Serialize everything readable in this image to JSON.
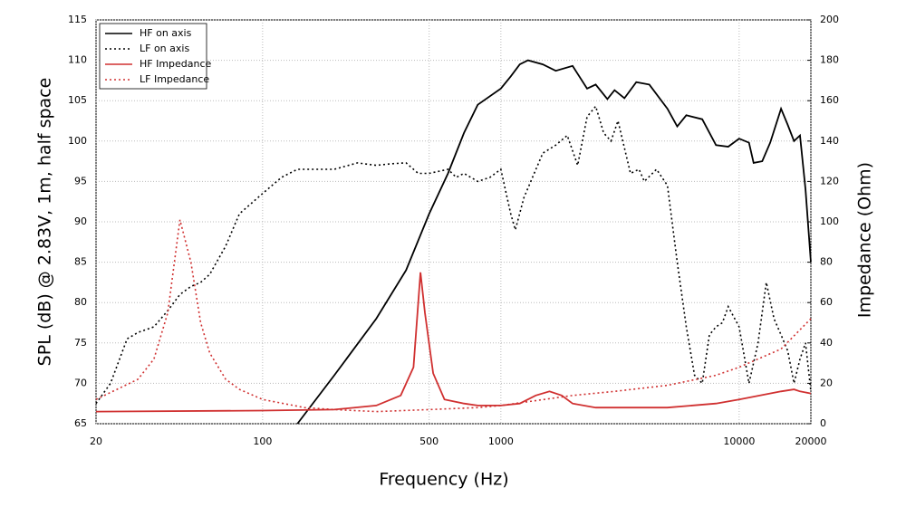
{
  "chart_data": {
    "type": "line",
    "xlabel": "Frequency (Hz)",
    "ylabel": "SPL (dB) @ 2.83V, 1m, half space",
    "y2label": "Impedance (Ohm)",
    "xscale": "log",
    "xlim": [
      20,
      20000
    ],
    "xticks": [
      20,
      100,
      500,
      1000,
      10000,
      20000
    ],
    "ylim": [
      65,
      115
    ],
    "yticks": [
      65,
      70,
      75,
      80,
      85,
      90,
      95,
      100,
      105,
      110,
      115
    ],
    "y2lim": [
      0,
      200
    ],
    "y2ticks": [
      0,
      20,
      40,
      60,
      80,
      100,
      120,
      140,
      160,
      180,
      200
    ],
    "grid": true,
    "legend": "upper left",
    "series": [
      {
        "name": "HF on axis",
        "color": "#000000",
        "dash": false,
        "x": [
          140,
          200,
          300,
          400,
          500,
          600,
          700,
          800,
          1000,
          1100,
          1200,
          1300,
          1500,
          1700,
          2000,
          2300,
          2500,
          2800,
          3000,
          3300,
          3700,
          4200,
          5000,
          5500,
          6000,
          7000,
          8000,
          9000,
          10000,
          11000,
          11500,
          12500,
          13500,
          15000,
          16000,
          17000,
          18000,
          19000,
          20000
        ],
        "values": [
          65,
          71,
          78,
          84,
          91,
          96,
          101,
          104.5,
          106.5,
          108,
          109.5,
          110,
          109.5,
          108.7,
          109.3,
          106.5,
          107,
          105.2,
          106.3,
          105.3,
          107.3,
          107,
          104,
          101.8,
          103.2,
          102.7,
          99.5,
          99.3,
          100.3,
          99.8,
          97.3,
          97.5,
          99.8,
          104,
          102,
          100,
          100.7,
          94,
          85
        ]
      },
      {
        "name": "LF on axis",
        "color": "#000000",
        "dash": true,
        "x": [
          20,
          23,
          27,
          30,
          35,
          40,
          45,
          50,
          55,
          60,
          70,
          80,
          100,
          120,
          140,
          200,
          250,
          300,
          350,
          400,
          450,
          500,
          600,
          650,
          700,
          800,
          900,
          1000,
          1100,
          1150,
          1250,
          1500,
          1700,
          1900,
          2100,
          2300,
          2500,
          2700,
          2900,
          3100,
          3500,
          3800,
          4000,
          4500,
          5000,
          5500,
          6000,
          6500,
          7000,
          7500,
          8000,
          8500,
          9000,
          10000,
          11000,
          12000,
          13000,
          14000,
          15000,
          16000,
          17000,
          18000,
          19000,
          20000
        ],
        "values": [
          67.5,
          70,
          75.5,
          76.3,
          77,
          79,
          81,
          82,
          82.5,
          83.5,
          87,
          91,
          93.5,
          95.5,
          96.5,
          96.5,
          97.3,
          97,
          97.2,
          97.3,
          96,
          96,
          96.5,
          95.5,
          96,
          95,
          95.5,
          96.5,
          91,
          89,
          93,
          98.5,
          99.5,
          100.7,
          97,
          103,
          104.3,
          101,
          100,
          102.5,
          96,
          96.5,
          95,
          96.5,
          94.5,
          85,
          77,
          71,
          70,
          76,
          77,
          77.5,
          79.5,
          77,
          70,
          75,
          82.5,
          78,
          76,
          74,
          70,
          73,
          75,
          69
        ]
      },
      {
        "name": "HF Impedance",
        "color": "#d03030",
        "dash": false,
        "axis": "y2",
        "x": [
          20,
          100,
          200,
          300,
          380,
          430,
          460,
          480,
          520,
          580,
          700,
          800,
          1000,
          1200,
          1400,
          1600,
          1800,
          2000,
          2500,
          5000,
          8000,
          10000,
          15000,
          17000,
          18000,
          20000
        ],
        "values": [
          6,
          6.5,
          7,
          9,
          14,
          28,
          75,
          55,
          25,
          12,
          10,
          9,
          9,
          10,
          14,
          16,
          14,
          10,
          8,
          8,
          10,
          12,
          16,
          17,
          16,
          15
        ]
      },
      {
        "name": "LF Impedance",
        "color": "#d03030",
        "dash": true,
        "axis": "y2",
        "x": [
          20,
          30,
          35,
          40,
          45,
          50,
          55,
          60,
          70,
          80,
          100,
          150,
          200,
          300,
          500,
          800,
          1000,
          2000,
          3000,
          5000,
          8000,
          10000,
          15000,
          20000
        ],
        "values": [
          12,
          22,
          32,
          55,
          101,
          80,
          50,
          35,
          22,
          17,
          12,
          8,
          7,
          6,
          7,
          8,
          9,
          14,
          16,
          19,
          24,
          28,
          37,
          52
        ]
      }
    ]
  }
}
